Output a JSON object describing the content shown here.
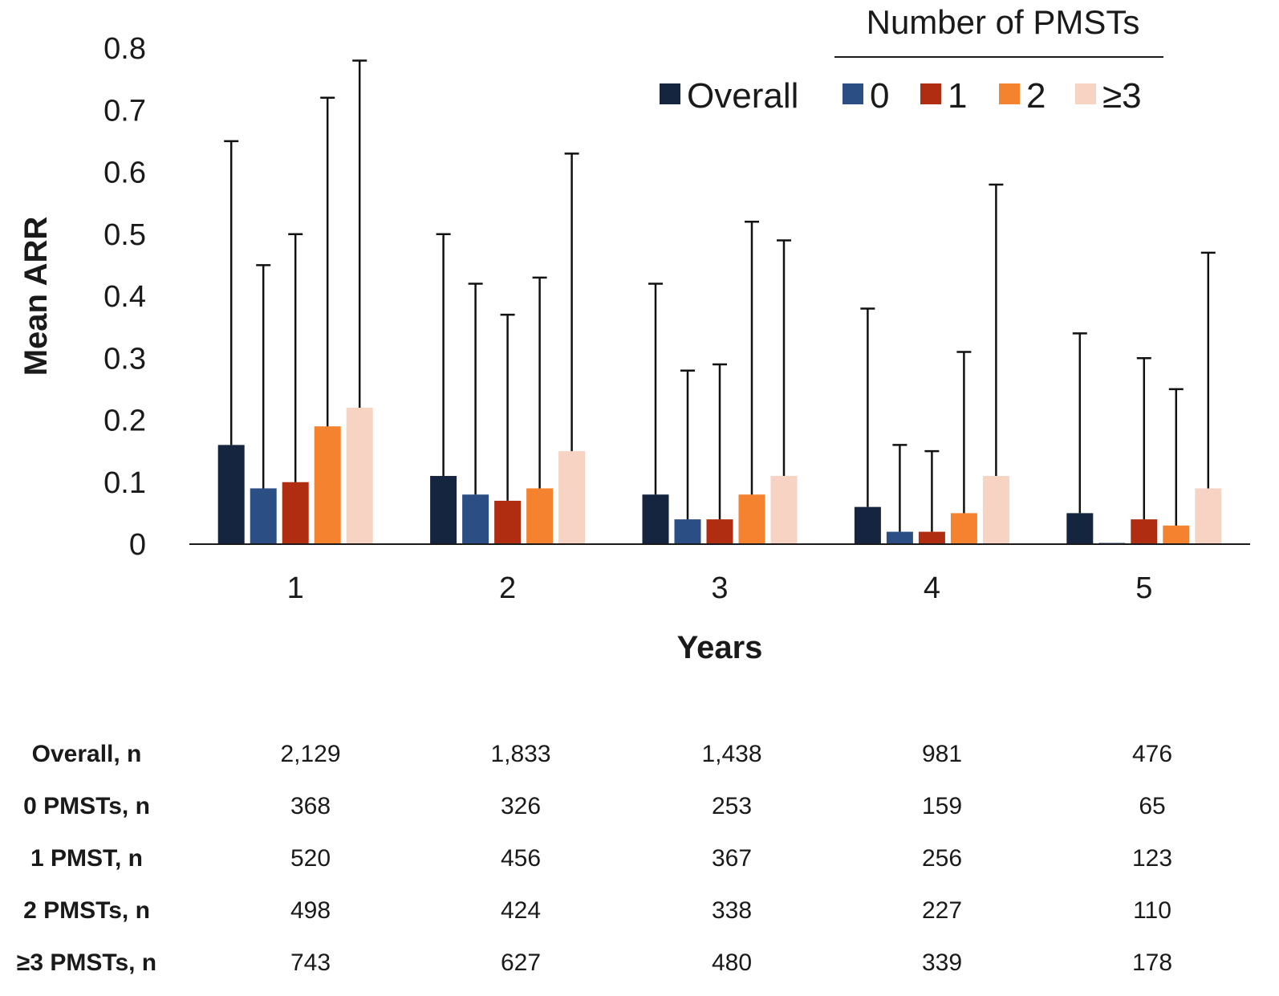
{
  "chart_data": {
    "type": "bar",
    "title": "",
    "xlabel": "Years",
    "ylabel": "Mean ARR",
    "ylim": [
      0,
      0.8
    ],
    "yticks": [
      "0",
      "0.1",
      "0.2",
      "0.3",
      "0.4",
      "0.5",
      "0.6",
      "0.7",
      "0.8"
    ],
    "categories": [
      "1",
      "2",
      "3",
      "4",
      "5"
    ],
    "legend_title": "Number of PMSTs",
    "legend_position": "top-right",
    "series": [
      {
        "name": "Overall",
        "color": "#15243f",
        "values": [
          0.16,
          0.11,
          0.08,
          0.06,
          0.05
        ],
        "error_upper": [
          0.65,
          0.5,
          0.42,
          0.38,
          0.34
        ]
      },
      {
        "name": "0",
        "color": "#2b4f85",
        "values": [
          0.09,
          0.08,
          0.04,
          0.02,
          0.002
        ],
        "error_upper": [
          0.45,
          0.42,
          0.28,
          0.16,
          0.0
        ]
      },
      {
        "name": "1",
        "color": "#b12d12",
        "values": [
          0.1,
          0.07,
          0.04,
          0.02,
          0.04
        ],
        "error_upper": [
          0.5,
          0.37,
          0.29,
          0.15,
          0.3
        ]
      },
      {
        "name": "2",
        "color": "#f5822f",
        "values": [
          0.19,
          0.09,
          0.08,
          0.05,
          0.03
        ],
        "error_upper": [
          0.72,
          0.43,
          0.52,
          0.31,
          0.25
        ]
      },
      {
        "name": "≥3",
        "color": "#f7d3c3",
        "values": [
          0.22,
          0.15,
          0.11,
          0.11,
          0.09
        ],
        "error_upper": [
          0.78,
          0.63,
          0.49,
          0.58,
          0.47
        ]
      }
    ],
    "table": {
      "rows": [
        {
          "label": "Overall, n",
          "values": [
            "2,129",
            "1,833",
            "1,438",
            "981",
            "476"
          ]
        },
        {
          "label": "0 PMSTs, n",
          "values": [
            "368",
            "326",
            "253",
            "159",
            "65"
          ]
        },
        {
          "label": "1 PMST, n",
          "values": [
            "520",
            "456",
            "367",
            "256",
            "123"
          ]
        },
        {
          "label": "2 PMSTs, n",
          "values": [
            "498",
            "424",
            "338",
            "227",
            "110"
          ]
        },
        {
          "label": "≥3 PMSTs, n",
          "values": [
            "743",
            "627",
            "480",
            "339",
            "178"
          ]
        }
      ]
    }
  }
}
